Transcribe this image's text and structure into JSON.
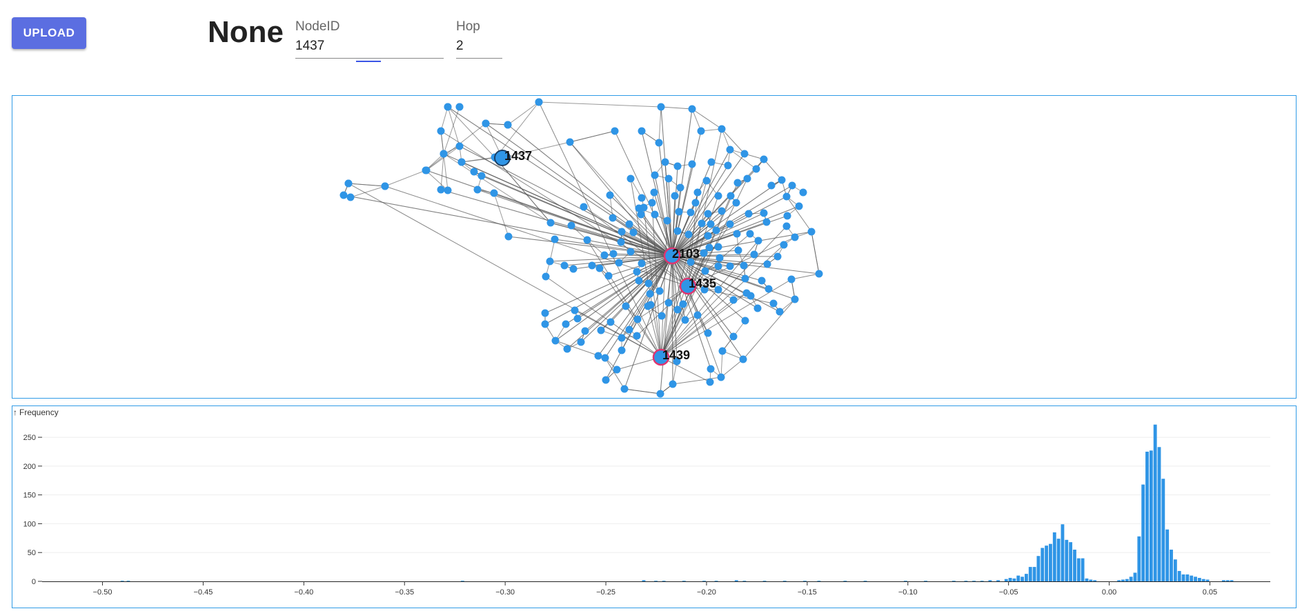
{
  "toolbar": {
    "upload_label": "UPLOAD"
  },
  "page_title": "None",
  "node_id_field": {
    "label": "NodeID",
    "value": "1437"
  },
  "hop_field": {
    "label": "Hop",
    "value": "2"
  },
  "graph": {
    "labeled_nodes": [
      "1437",
      "2103",
      "1435",
      "1439"
    ],
    "node_color": "#2f95e6",
    "highlight_stroke": "#e0356f",
    "edge_color": "#555555"
  },
  "chart_data": {
    "type": "bar",
    "title": "",
    "xlabel": "",
    "ylabel": "Frequency",
    "ylim": [
      0,
      280
    ],
    "xlim": [
      -0.53,
      0.08
    ],
    "grid": true,
    "bar_color": "#2f95e6",
    "x_ticks": [
      "−0.50",
      "−0.45",
      "−0.40",
      "−0.35",
      "−0.30",
      "−0.25",
      "−0.20",
      "−0.15",
      "−0.10",
      "−0.05",
      "0.00",
      "0.05"
    ],
    "y_ticks": [
      "0",
      "50",
      "100",
      "150",
      "200",
      "250"
    ],
    "bins": [
      [
        -0.491,
        1
      ],
      [
        -0.488,
        1
      ],
      [
        -0.322,
        1
      ],
      [
        -0.232,
        2
      ],
      [
        -0.226,
        1
      ],
      [
        -0.222,
        1
      ],
      [
        -0.212,
        1
      ],
      [
        -0.202,
        1
      ],
      [
        -0.196,
        1
      ],
      [
        -0.186,
        2
      ],
      [
        -0.182,
        1
      ],
      [
        -0.172,
        1
      ],
      [
        -0.162,
        1
      ],
      [
        -0.152,
        1
      ],
      [
        -0.145,
        1
      ],
      [
        -0.132,
        1
      ],
      [
        -0.122,
        1
      ],
      [
        -0.102,
        1
      ],
      [
        -0.092,
        1
      ],
      [
        -0.078,
        1
      ],
      [
        -0.072,
        1
      ],
      [
        -0.068,
        1
      ],
      [
        -0.064,
        1
      ],
      [
        -0.06,
        2
      ],
      [
        -0.056,
        2
      ],
      [
        -0.052,
        4
      ],
      [
        -0.05,
        6
      ],
      [
        -0.048,
        5
      ],
      [
        -0.046,
        10
      ],
      [
        -0.044,
        8
      ],
      [
        -0.042,
        13
      ],
      [
        -0.04,
        25
      ],
      [
        -0.038,
        25
      ],
      [
        -0.036,
        44
      ],
      [
        -0.034,
        58
      ],
      [
        -0.032,
        62
      ],
      [
        -0.03,
        65
      ],
      [
        -0.028,
        85
      ],
      [
        -0.026,
        74
      ],
      [
        -0.024,
        99
      ],
      [
        -0.022,
        72
      ],
      [
        -0.02,
        68
      ],
      [
        -0.018,
        55
      ],
      [
        -0.016,
        40
      ],
      [
        -0.014,
        40
      ],
      [
        -0.012,
        5
      ],
      [
        -0.01,
        3
      ],
      [
        -0.008,
        2
      ],
      [
        0.004,
        2
      ],
      [
        0.006,
        3
      ],
      [
        0.008,
        4
      ],
      [
        0.01,
        8
      ],
      [
        0.012,
        15
      ],
      [
        0.014,
        78
      ],
      [
        0.016,
        168
      ],
      [
        0.018,
        225
      ],
      [
        0.02,
        227
      ],
      [
        0.022,
        272
      ],
      [
        0.024,
        233
      ],
      [
        0.026,
        178
      ],
      [
        0.028,
        90
      ],
      [
        0.03,
        55
      ],
      [
        0.032,
        38
      ],
      [
        0.034,
        18
      ],
      [
        0.036,
        12
      ],
      [
        0.038,
        12
      ],
      [
        0.04,
        10
      ],
      [
        0.042,
        8
      ],
      [
        0.044,
        6
      ],
      [
        0.046,
        4
      ],
      [
        0.048,
        3
      ],
      [
        0.056,
        2
      ],
      [
        0.058,
        2
      ],
      [
        0.06,
        2
      ]
    ]
  }
}
